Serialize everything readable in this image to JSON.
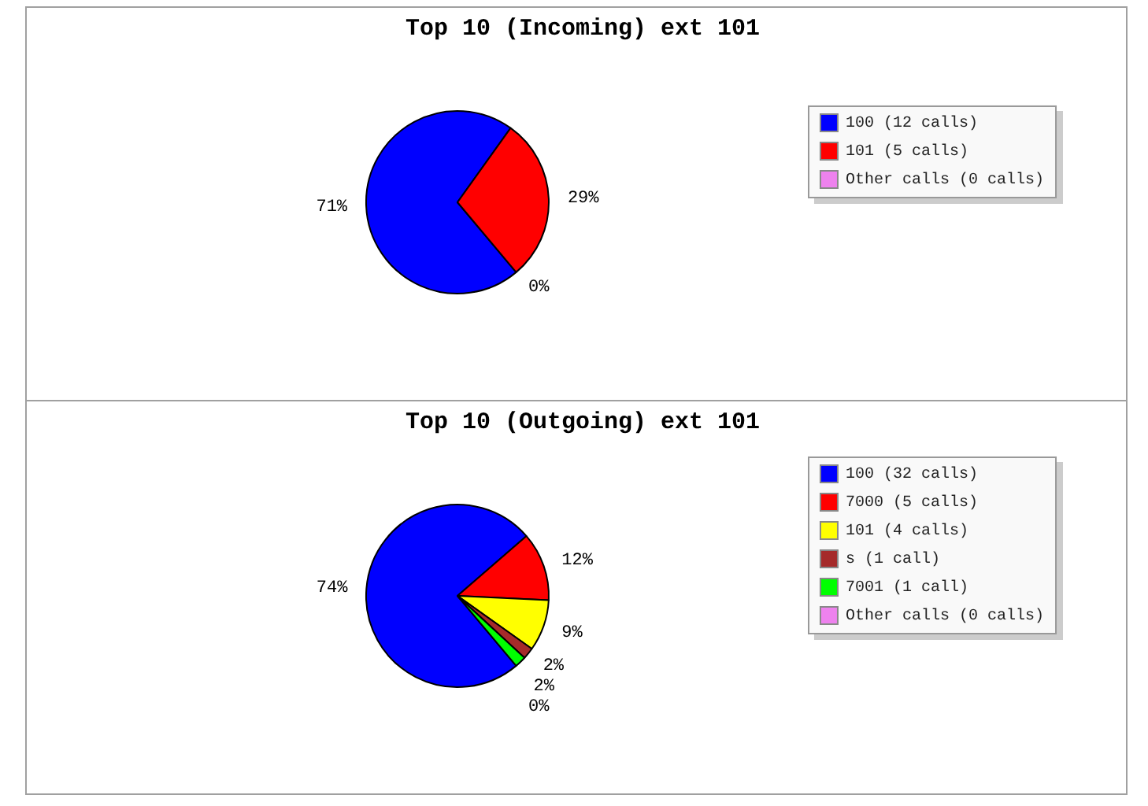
{
  "chart_data": [
    {
      "type": "pie",
      "title": "Top 10 (Incoming) ext 101",
      "categories": [
        "100 (12 calls)",
        "101 (5 calls)",
        "Other calls (0 calls)"
      ],
      "values": [
        71,
        29,
        0
      ],
      "colors": [
        "#0000ff",
        "#ff0000",
        "#ee82ee"
      ],
      "value_labels": [
        "71%",
        "29%",
        "0%"
      ],
      "legend": "right"
    },
    {
      "type": "pie",
      "title": "Top 10 (Outgoing) ext 101",
      "categories": [
        "100 (32 calls)",
        "7000 (5 calls)",
        "101 (4 calls)",
        "s (1 call)",
        "7001 (1 call)",
        "Other calls (0 calls)"
      ],
      "values": [
        74,
        12,
        9,
        2,
        2,
        0
      ],
      "colors": [
        "#0000ff",
        "#ff0000",
        "#ffff00",
        "#a52a2a",
        "#00ff00",
        "#ee82ee"
      ],
      "value_labels": [
        "74%",
        "12%",
        "9%",
        "2%",
        "2%",
        "0%"
      ],
      "legend": "right"
    }
  ]
}
